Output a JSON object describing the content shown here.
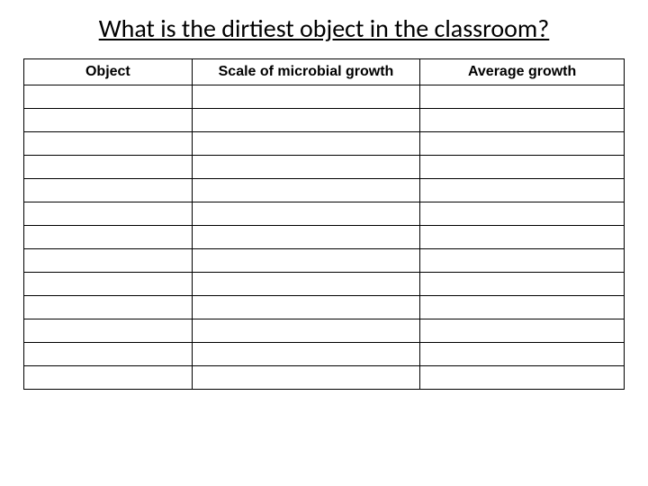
{
  "title": "What is the dirtiest object in the classroom?",
  "table": {
    "columns": [
      "Object",
      "Scale of microbial growth",
      "Average growth"
    ],
    "rows": [
      [
        "",
        "",
        ""
      ],
      [
        "",
        "",
        ""
      ],
      [
        "",
        "",
        ""
      ],
      [
        "",
        "",
        ""
      ],
      [
        "",
        "",
        ""
      ],
      [
        "",
        "",
        ""
      ],
      [
        "",
        "",
        ""
      ],
      [
        "",
        "",
        ""
      ],
      [
        "",
        "",
        ""
      ],
      [
        "",
        "",
        ""
      ],
      [
        "",
        "",
        ""
      ],
      [
        "",
        "",
        ""
      ],
      [
        "",
        "",
        ""
      ]
    ],
    "border_color": "#000000",
    "background_color": "#ffffff",
    "header_fontsize": 16,
    "header_fontweight": "bold",
    "col_widths_pct": [
      28,
      38,
      34
    ]
  },
  "title_fontsize": 28,
  "title_underline": true
}
